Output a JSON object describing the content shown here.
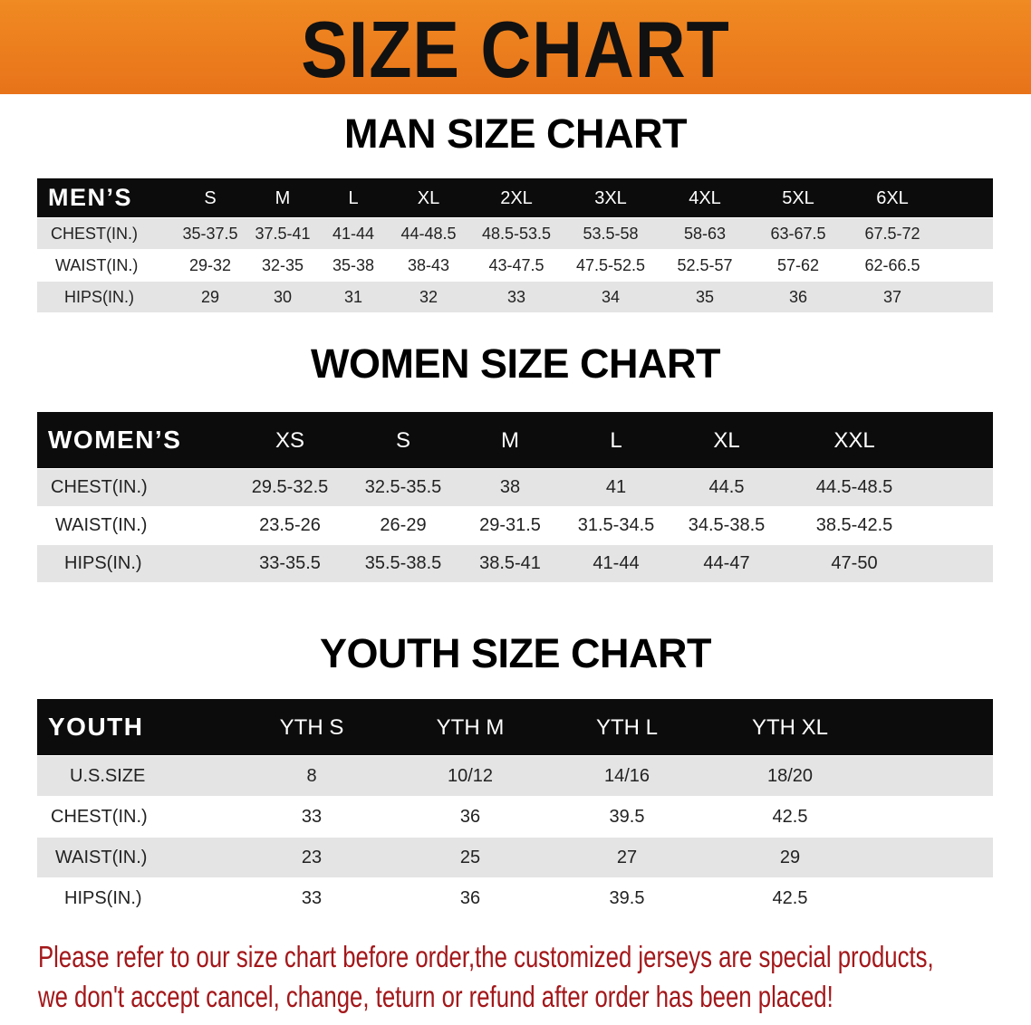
{
  "banner_title": "SIZE CHART",
  "men": {
    "title": "MAN SIZE CHART",
    "header_label": "MEN’S",
    "sizes": [
      "S",
      "M",
      "L",
      "XL",
      "2XL",
      "3XL",
      "4XL",
      "5XL",
      "6XL"
    ],
    "rows": [
      {
        "label": "CHEST(IN.)",
        "values": [
          "35-37.5",
          "37.5-41",
          "41-44",
          "44-48.5",
          "48.5-53.5",
          "53.5-58",
          "58-63",
          "63-67.5",
          "67.5-72"
        ]
      },
      {
        "label": "WAIST(IN.)",
        "values": [
          "29-32",
          "32-35",
          "35-38",
          "38-43",
          "43-47.5",
          "47.5-52.5",
          "52.5-57",
          "57-62",
          "62-66.5"
        ]
      },
      {
        "label": "HIPS(IN.)",
        "values": [
          "29",
          "30",
          "31",
          "32",
          "33",
          "34",
          "35",
          "36",
          "37"
        ]
      }
    ]
  },
  "women": {
    "title": "WOMEN SIZE CHART",
    "header_label": "WOMEN’S",
    "sizes": [
      "XS",
      "S",
      "M",
      "L",
      "XL",
      "XXL"
    ],
    "rows": [
      {
        "label": "CHEST(IN.)",
        "values": [
          "29.5-32.5",
          "32.5-35.5",
          "38",
          "41",
          "44.5",
          "44.5-48.5"
        ]
      },
      {
        "label": "WAIST(IN.)",
        "values": [
          "23.5-26",
          "26-29",
          "29-31.5",
          "31.5-34.5",
          "34.5-38.5",
          "38.5-42.5"
        ]
      },
      {
        "label": "HIPS(IN.)",
        "values": [
          "33-35.5",
          "35.5-38.5",
          "38.5-41",
          "41-44",
          "44-47",
          "47-50"
        ]
      }
    ]
  },
  "youth": {
    "title": "YOUTH SIZE CHART",
    "header_label": "YOUTH",
    "sizes": [
      "YTH S",
      "YTH M",
      "YTH L",
      "YTH XL"
    ],
    "rows": [
      {
        "label": "U.S.SIZE",
        "values": [
          "8",
          "10/12",
          "14/16",
          "18/20"
        ]
      },
      {
        "label": "CHEST(IN.)",
        "values": [
          "33",
          "36",
          "39.5",
          "42.5"
        ]
      },
      {
        "label": "WAIST(IN.)",
        "values": [
          "23",
          "25",
          "27",
          "29"
        ]
      },
      {
        "label": "HIPS(IN.)",
        "values": [
          "33",
          "36",
          "39.5",
          "42.5"
        ]
      }
    ]
  },
  "notice": [
    "Please refer to our size chart before order,the customized jerseys are special products,",
    "we don't accept cancel, change, teturn or refund after order has been placed!"
  ],
  "colors": {
    "banner": "#ec7d1e",
    "header": "#0c0c0c",
    "stripe": "#e4e4e4",
    "notice": "#a3171a"
  }
}
